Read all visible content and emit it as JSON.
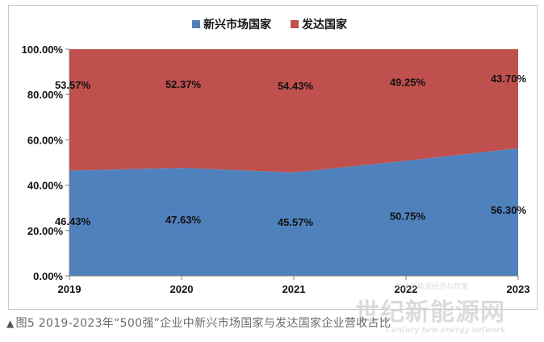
{
  "chart_data": {
    "type": "area",
    "stacked": true,
    "categories": [
      "2019",
      "2020",
      "2021",
      "2022",
      "2023"
    ],
    "series": [
      {
        "name": "新兴市场国家",
        "values": [
          46.43,
          47.63,
          45.57,
          50.75,
          56.3
        ],
        "labels": [
          "46.43%",
          "47.63%",
          "45.57%",
          "50.75%",
          "56.30%"
        ],
        "color": "#4f81bd"
      },
      {
        "name": "发达国家",
        "values": [
          53.57,
          52.37,
          54.43,
          49.25,
          43.7
        ],
        "labels": [
          "53.57%",
          "52.37%",
          "54.43%",
          "49.25%",
          "43.70%"
        ],
        "color": "#c0504d"
      }
    ],
    "ylim": [
      0,
      100
    ],
    "yticks": [
      "0.00%",
      "20.00%",
      "40.00%",
      "60.00%",
      "80.00%",
      "100.00%"
    ],
    "legend_position": "top",
    "grid": false
  },
  "caption": {
    "marker": "▲",
    "text": "图5 2019-2023年“500强”企业中新兴市场国家与发达国家企业营收占比"
  },
  "watermark": {
    "cn": "世纪新能源网",
    "en": "Century new energy network",
    "small": "关注新能源经济与政策"
  }
}
